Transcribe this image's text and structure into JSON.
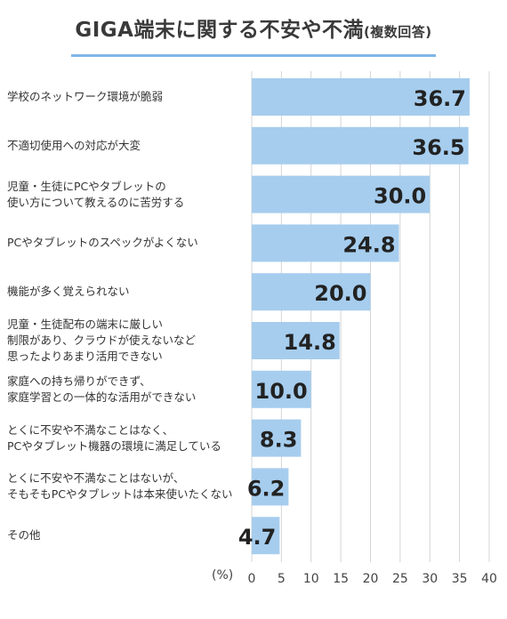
{
  "title": "GIGA端末に関する不安や不満",
  "subtitle": "(複数回答)",
  "chart_data": {
    "type": "bar",
    "orientation": "horizontal",
    "categories": [
      "学校のネットワーク環境が脆弱",
      "不適切使用への対応が大変",
      "児童・生徒にPCやタブレットの\n使い方について教えるのに苦労する",
      "PCやタブレットのスペックがよくない",
      "機能が多く覚えられない",
      "児童・生徒配布の端末に厳しい\n制限があり、クラウドが使えないなど\n思ったよりあまり活用できない",
      "家庭への持ち帰りができず、\n家庭学習との一体的な活用ができない",
      "とくに不安や不満なことはなく、\nPCやタブレット機器の環境に満足している",
      "とくに不安や不満なことはないが、\nそもそもPCやタブレットは本来使いたくない",
      "その他"
    ],
    "values": [
      36.7,
      36.5,
      30.0,
      24.8,
      20.0,
      14.8,
      10.0,
      8.3,
      6.2,
      4.7
    ],
    "value_labels": [
      "36.7",
      "36.5",
      "30.0",
      "24.8",
      "20.0",
      "14.8",
      "10.0",
      "8.3",
      "6.2",
      "4.7"
    ],
    "xlim": [
      0,
      40
    ],
    "xticks": [
      "0",
      "5",
      "10",
      "15",
      "20",
      "25",
      "30",
      "35",
      "40"
    ],
    "x_unit": "(%)",
    "grid": true,
    "bar_color": "#a6cdee",
    "grid_color": "#d4d4d4",
    "accent_color": "#7fb6e6"
  }
}
